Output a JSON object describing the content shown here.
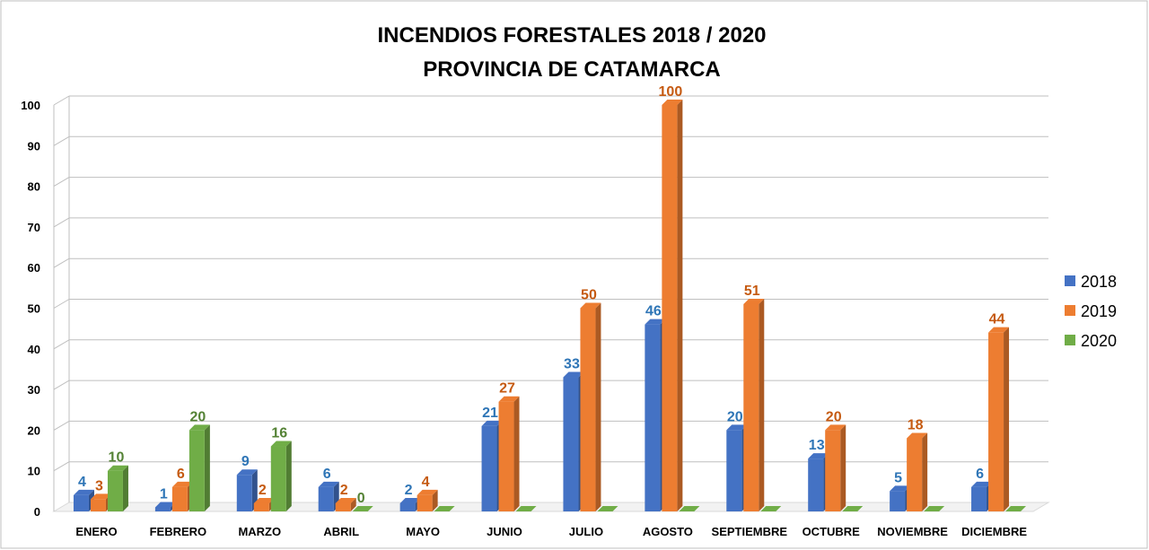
{
  "chart_data": {
    "type": "bar",
    "title": [
      "INCENDIOS FORESTALES 2018 / 2020",
      "PROVINCIA DE CATAMARCA"
    ],
    "categories": [
      "ENERO",
      "FEBRERO",
      "MARZO",
      "ABRIL",
      "MAYO",
      "JUNIO",
      "JULIO",
      "AGOSTO",
      "SEPTIEMBRE",
      "OCTUBRE",
      "NOVIEMBRE",
      "DICIEMBRE"
    ],
    "series": [
      {
        "name": "2018",
        "color": "#4472c4",
        "label_color": "#2e75b6",
        "values": [
          4,
          1,
          9,
          6,
          2,
          21,
          33,
          46,
          20,
          13,
          5,
          6
        ],
        "labels": [
          "4",
          "1",
          "9",
          "6",
          "2",
          "21",
          "33",
          "46",
          "20",
          "13",
          "5",
          "6"
        ]
      },
      {
        "name": "2019",
        "color": "#ed7d31",
        "label_color": "#c55a11",
        "values": [
          3,
          6,
          2,
          2,
          4,
          27,
          50,
          100,
          51,
          20,
          18,
          44
        ],
        "labels": [
          "3",
          "6",
          "2",
          "2",
          "4",
          "27",
          "50",
          "100",
          "51",
          "20",
          "18",
          "44"
        ]
      },
      {
        "name": "2020",
        "color": "#70ad47",
        "label_color": "#548235",
        "values": [
          10,
          20,
          16,
          0,
          0,
          0,
          0,
          0,
          0,
          0,
          0,
          0
        ],
        "labels": [
          "10",
          "20",
          "16",
          "0",
          "",
          "",
          "",
          "",
          "",
          "",
          "",
          ""
        ]
      }
    ],
    "ylim": [
      0,
      100
    ],
    "yticks": [
      0,
      10,
      20,
      30,
      40,
      50,
      60,
      70,
      80,
      90,
      100
    ],
    "xlabel": "",
    "ylabel": "",
    "grid": true,
    "legend": "right",
    "style": "3d-column"
  }
}
